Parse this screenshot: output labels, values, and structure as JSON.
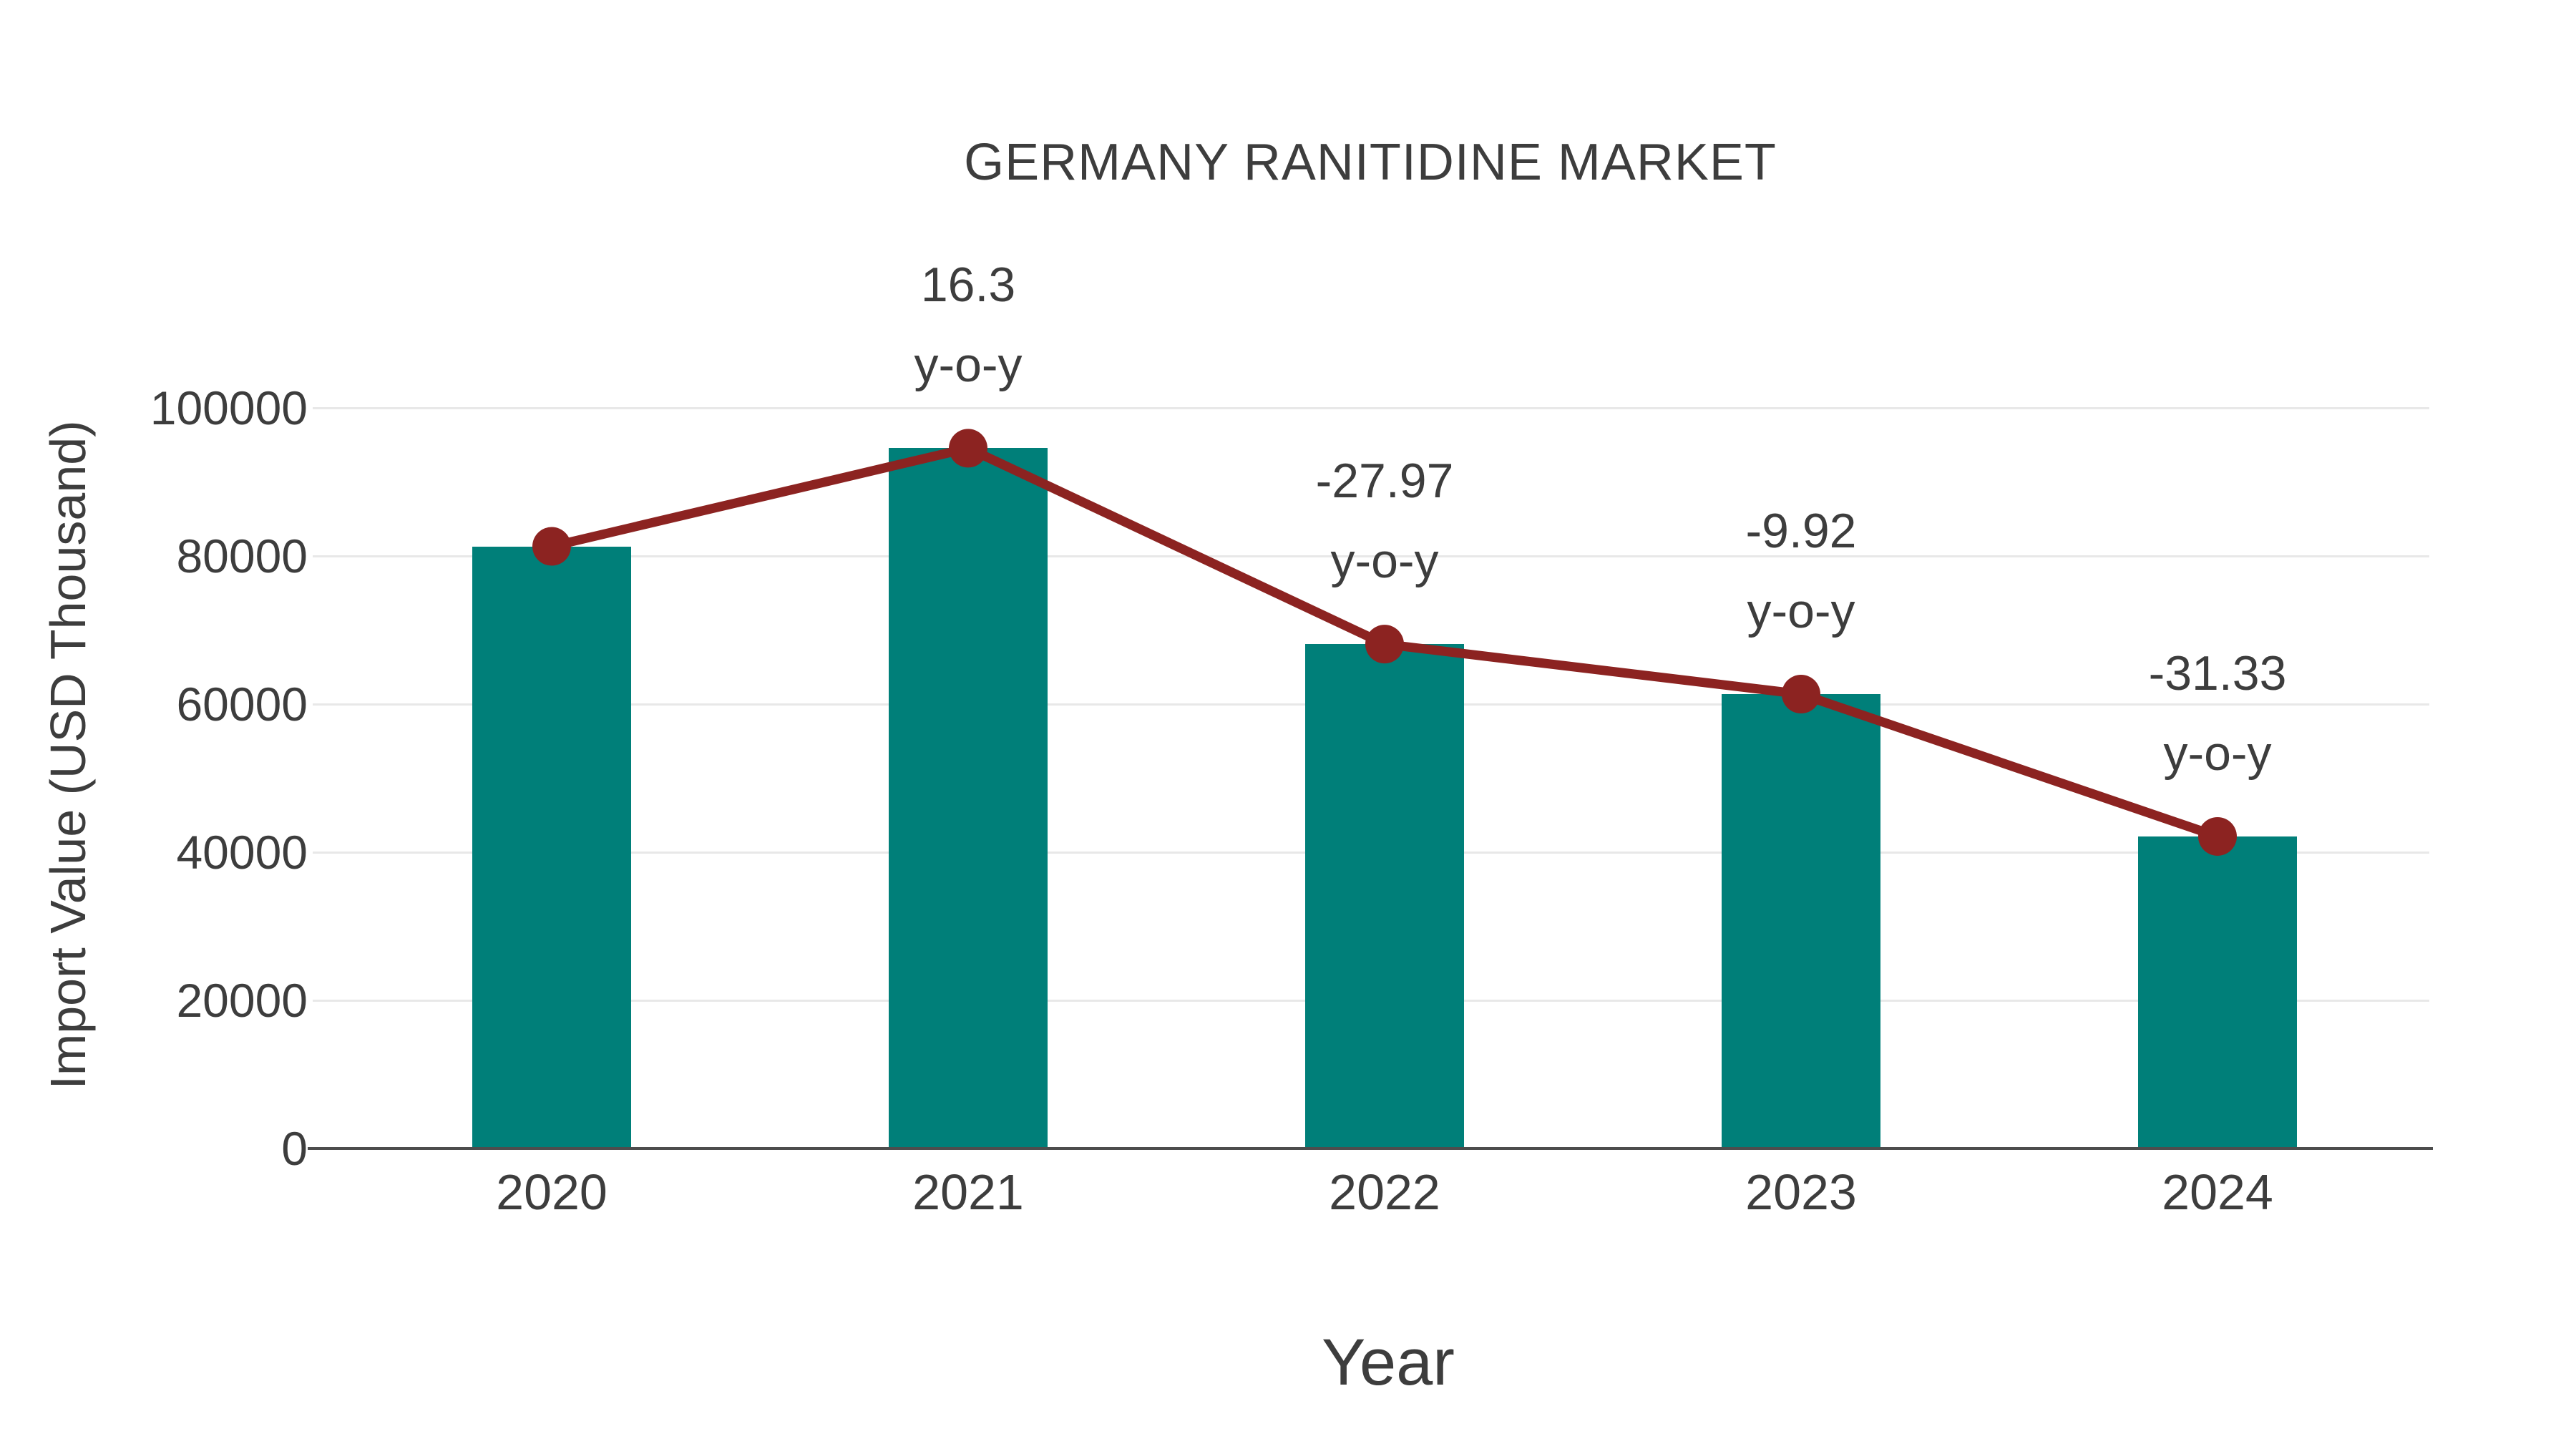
{
  "chart_data": {
    "type": "bar",
    "title": "GERMANY RANITIDINE MARKET",
    "xlabel": "Year",
    "ylabel": "Import Value (USD Thousand)",
    "categories": [
      "2020",
      "2021",
      "2022",
      "2023",
      "2024"
    ],
    "series": [
      {
        "name": "Import Value (USD Thousand)",
        "type": "bar",
        "color": "#007f79",
        "values": [
          81300,
          94550,
          68100,
          61350,
          42130
        ]
      },
      {
        "name": "Import Value trend",
        "type": "line",
        "color": "#8c2321",
        "values": [
          81300,
          94550,
          68100,
          61350,
          42130
        ]
      }
    ],
    "yoy_percent": [
      null,
      16.3,
      -27.97,
      -9.92,
      -31.33
    ],
    "annotations": [
      {
        "category": "2021",
        "index": 1,
        "line1": "16.3",
        "line2": "y-o-y"
      },
      {
        "category": "2022",
        "index": 2,
        "line1": "-27.97",
        "line2": "y-o-y"
      },
      {
        "category": "2023",
        "index": 3,
        "line1": "-9.92",
        "line2": "y-o-y"
      },
      {
        "category": "2024",
        "index": 4,
        "line1": "-31.33",
        "line2": "y-o-y"
      }
    ],
    "yticks": [
      0,
      20000,
      40000,
      60000,
      80000,
      100000
    ],
    "ylim": [
      0,
      110000
    ],
    "grid": "horizontal",
    "legend": "none"
  },
  "colors": {
    "background": "#ffffff",
    "bar": "#007f79",
    "line": "#8c2321",
    "text": "#3d3d3d",
    "gridline": "#e8e8e8",
    "axis": "#4d4d4d"
  }
}
